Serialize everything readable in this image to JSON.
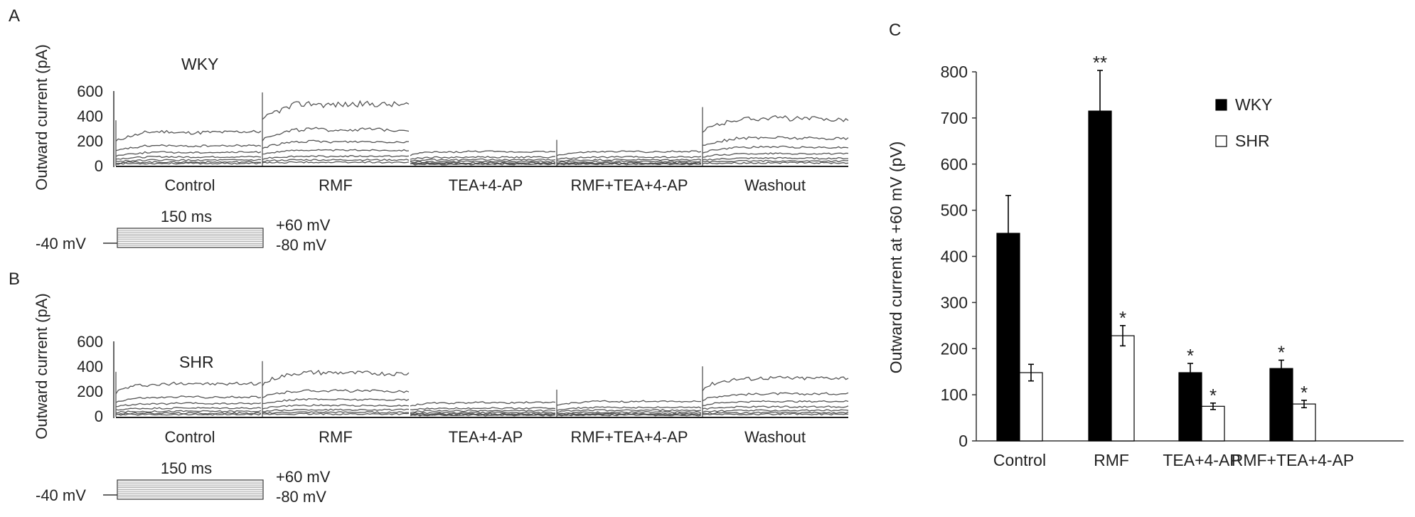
{
  "panels": {
    "A": {
      "letter": "A",
      "group": "WKY",
      "ylabel": "Outward current (pA)",
      "yticks": [
        "600",
        "400",
        "200",
        "0"
      ],
      "conditions": [
        "Control",
        "RMF",
        "TEA+4-AP",
        "RMF+TEA+4-AP",
        "Washout"
      ],
      "protocol": {
        "duration": "150 ms",
        "hold": "-40 mV",
        "max": "+60 mV",
        "min": "-80 mV"
      },
      "peak_traces_pA": [
        [
          250,
          280,
          250,
          260,
          270
        ],
        [
          470,
          510,
          480,
          490,
          480
        ],
        [
          110,
          100,
          110,
          100,
          105
        ],
        [
          100,
          105,
          110,
          100,
          110
        ],
        [
          340,
          380,
          390,
          370,
          360
        ]
      ]
    },
    "B": {
      "letter": "B",
      "group": "SHR",
      "ylabel": "Outward current (pA)",
      "yticks": [
        "600",
        "400",
        "200",
        "0"
      ],
      "conditions": [
        "Control",
        "RMF",
        "TEA+4-AP",
        "RMF+TEA+4-AP",
        "Washout"
      ],
      "protocol": {
        "duration": "150 ms",
        "hold": "-40 mV",
        "max": "+60 mV",
        "min": "-80 mV"
      },
      "peak_traces_pA": [
        [
          260,
          250,
          270,
          250,
          260
        ],
        [
          340,
          360,
          350,
          340,
          330
        ],
        [
          110,
          100,
          110,
          100,
          110
        ],
        [
          110,
          120,
          110,
          120,
          115
        ],
        [
          290,
          300,
          310,
          300,
          310
        ]
      ]
    },
    "C": {
      "letter": "C"
    }
  },
  "chart_data": {
    "type": "bar",
    "ylabel": "Outward current at +60 mV (pV)",
    "xlabel": "",
    "categories": [
      "Control",
      "RMF",
      "TEA+4-AP",
      "RMF+TEA+4-AP"
    ],
    "ylim": [
      0,
      800
    ],
    "yticks": [
      0,
      100,
      200,
      300,
      400,
      500,
      600,
      700,
      800
    ],
    "legend_position": "top-right",
    "series": [
      {
        "name": "WKY",
        "color": "#000000",
        "values": [
          450,
          715,
          148,
          157
        ],
        "errors": [
          82,
          88,
          20,
          18
        ],
        "annotations": [
          "",
          "**",
          "*",
          "*"
        ]
      },
      {
        "name": "SHR",
        "color": "#ffffff",
        "values": [
          148,
          228,
          75,
          80
        ],
        "errors": [
          18,
          22,
          7,
          8
        ],
        "annotations": [
          "",
          "*",
          "*",
          "*"
        ]
      }
    ]
  }
}
